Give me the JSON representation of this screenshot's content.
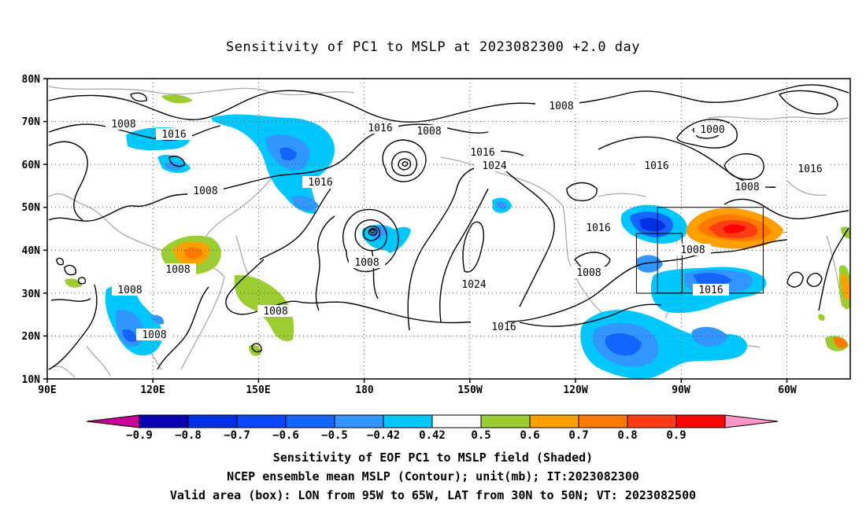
{
  "title": "Sensitivity of PC1 to MSLP at 2023082300 +2.0 day",
  "lat_labels": [
    "80N",
    "70N",
    "60N",
    "50N",
    "40N",
    "30N",
    "20N",
    "10N"
  ],
  "lon_labels": [
    "90E",
    "120E",
    "150E",
    "180",
    "150W",
    "120W",
    "90W",
    "60W"
  ],
  "contour_labels": [
    "1008",
    "1016",
    "1008",
    "1016",
    "1016",
    "1008",
    "1016",
    "1008",
    "1016",
    "1024",
    "1008",
    "1016",
    "1008",
    "1000",
    "1016",
    "1008",
    "1016",
    "1016",
    "1008",
    "1008",
    "1024",
    "1016",
    "1008",
    "1016",
    "1008",
    "1008",
    "1008"
  ],
  "colorbar": {
    "labels": [
      "-0.9",
      "-0.8",
      "-0.7",
      "-0.6",
      "-0.5",
      "-0.42",
      "0.42",
      "0.5",
      "0.6",
      "0.7",
      "0.8",
      "0.9"
    ],
    "colors": [
      "#0a00b4",
      "#0030e6",
      "#0a46ff",
      "#1464ff",
      "#3296ff",
      "#00c8ff",
      "#ffffff",
      "#9bcd32",
      "#ffa000",
      "#ff7800",
      "#ff3c14",
      "#ff0000"
    ],
    "under_color": "#c80096",
    "over_color": "#ff96c8"
  },
  "valid_box": "LON from 95W to 65W, LAT from 30N to 50N",
  "captions": [
    "Sensitivity of EOF PC1 to MSLP field (Shaded)",
    "NCEP ensemble mean MSLP (Contour); unit(mb); IT:2023082300",
    "Valid area (box): LON from 95W to 65W, LAT from 30N to 50N; VT: 2023082500"
  ]
}
